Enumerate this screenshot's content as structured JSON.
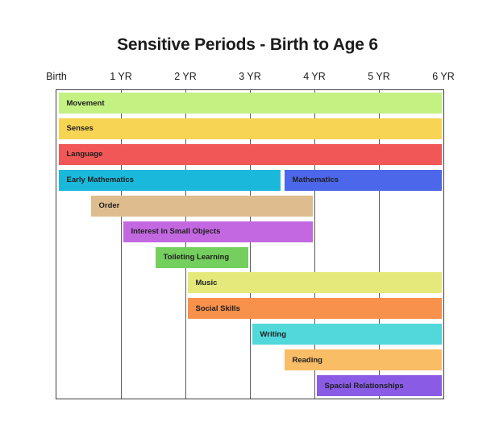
{
  "chart_data": {
    "type": "bar",
    "subtype": "horizontal-range-gantt",
    "title": "Sensitive Periods - Birth to Age 6",
    "xlabel": "",
    "ylabel": "",
    "x_unit": "years",
    "x_range": [
      0,
      6
    ],
    "x_ticks": [
      0,
      1,
      2,
      3,
      4,
      5,
      6
    ],
    "x_tick_labels": [
      "Birth",
      "1 YR",
      "2 YR",
      "3 YR",
      "4 YR",
      "5 YR",
      "6 YR"
    ],
    "grid": true,
    "row_count": 12,
    "bars": [
      {
        "row": 0,
        "label": "Movement",
        "start_yr": 0,
        "end_yr": 6,
        "color": "#c3f182"
      },
      {
        "row": 1,
        "label": "Senses",
        "start_yr": 0,
        "end_yr": 6,
        "color": "#f8d455"
      },
      {
        "row": 2,
        "label": "Language",
        "start_yr": 0,
        "end_yr": 6,
        "color": "#f25757"
      },
      {
        "row": 3,
        "label": "Early Mathematics",
        "start_yr": 0,
        "end_yr": 3.5,
        "color": "#1ab9dc"
      },
      {
        "row": 3,
        "label": "Mathematics",
        "start_yr": 3.5,
        "end_yr": 6,
        "color": "#4d67ea"
      },
      {
        "row": 4,
        "label": "Order",
        "start_yr": 0.5,
        "end_yr": 4,
        "color": "#debc8d"
      },
      {
        "row": 5,
        "label": "Interest in Small Objects",
        "start_yr": 1,
        "end_yr": 4,
        "color": "#c368e0"
      },
      {
        "row": 6,
        "label": "Toileting Learning",
        "start_yr": 1.5,
        "end_yr": 3,
        "color": "#74cf5e"
      },
      {
        "row": 7,
        "label": "Music",
        "start_yr": 2,
        "end_yr": 6,
        "color": "#e5e97c"
      },
      {
        "row": 8,
        "label": "Social Skills",
        "start_yr": 2,
        "end_yr": 6,
        "color": "#f8914c"
      },
      {
        "row": 9,
        "label": "Writing",
        "start_yr": 3,
        "end_yr": 6,
        "color": "#50d8db"
      },
      {
        "row": 10,
        "label": "Reading",
        "start_yr": 3.5,
        "end_yr": 6,
        "color": "#f9bd66"
      },
      {
        "row": 11,
        "label": "Spacial Relationships",
        "start_yr": 4,
        "end_yr": 6,
        "color": "#8a5ce6"
      }
    ],
    "colors": {
      "background": "#ffffff",
      "plot_border": "#3f3f3f",
      "gridline": "#5a5a5a",
      "bar_label_text": "#1e1e1e",
      "title_text": "#1c1c1c"
    }
  }
}
